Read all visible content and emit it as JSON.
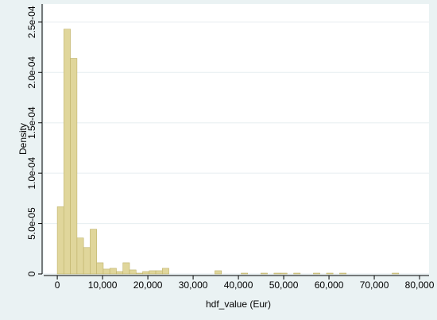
{
  "chart_data": {
    "type": "histogram",
    "y_label": "Density",
    "x_label": "hdf_value (Eur)",
    "bins": [
      0,
      1450,
      2900,
      4350,
      5800,
      7250,
      8700,
      10150,
      11600,
      13050,
      14500,
      15950,
      17400,
      18850,
      20300,
      21750,
      23200,
      24650,
      26100,
      27550,
      29000,
      30450,
      31900,
      33350,
      34800,
      36250,
      37700,
      39150,
      40600,
      42050,
      43500,
      44950,
      46400,
      47850,
      49300,
      50750,
      52200,
      53650,
      55100,
      56550,
      58000,
      59450,
      60900,
      62350,
      63800,
      65250,
      66700,
      68150,
      69600,
      71050,
      72500,
      73950,
      75400,
      76850,
      78300,
      79750
    ],
    "values": [
      6.67e-05,
      0.000243,
      0.000214,
      3.57e-05,
      2.62e-05,
      4.44e-05,
      1.11e-05,
      4.8e-06,
      5.6e-06,
      2.4e-06,
      1.11e-05,
      4e-06,
      8e-07,
      2.4e-06,
      3.2e-06,
      3.2e-06,
      5.6e-06,
      0,
      0,
      0,
      0,
      0,
      0,
      0,
      3.2e-06,
      0,
      0,
      0,
      8e-07,
      0,
      0,
      8e-07,
      0,
      8e-07,
      8e-07,
      0,
      8e-07,
      0,
      0,
      8e-07,
      0,
      8e-07,
      0,
      8e-07,
      0,
      0,
      0,
      0,
      0,
      0,
      0,
      8e-07,
      0,
      0,
      0
    ],
    "color": "#e0d69b",
    "edge_color": "#bfb26a",
    "xlim": [
      -3000,
      82100
    ],
    "ylim": [
      0,
      0.000268
    ],
    "xticks": [
      0,
      {
        "value": 10000,
        "label": "10,000"
      },
      {
        "value": 20000,
        "label": "20,000"
      },
      {
        "value": 30000,
        "label": "30,000"
      },
      {
        "value": 40000,
        "label": "40,000"
      },
      {
        "value": 50000,
        "label": "50,000"
      },
      {
        "value": 60000,
        "label": "60,000"
      },
      {
        "value": 70000,
        "label": "70,000"
      },
      {
        "value": 80000,
        "label": "80,000"
      }
    ],
    "yticks": [
      0,
      {
        "value": 5e-05,
        "label": "5.0e-05"
      },
      {
        "value": 0.0001,
        "label": "1.0e-04"
      },
      {
        "value": 0.00015,
        "label": "1.5e-04"
      },
      {
        "value": 0.0002,
        "label": "2.0e-04"
      },
      {
        "value": 0.00025,
        "label": "2.5e-04"
      }
    ],
    "grid": true
  }
}
